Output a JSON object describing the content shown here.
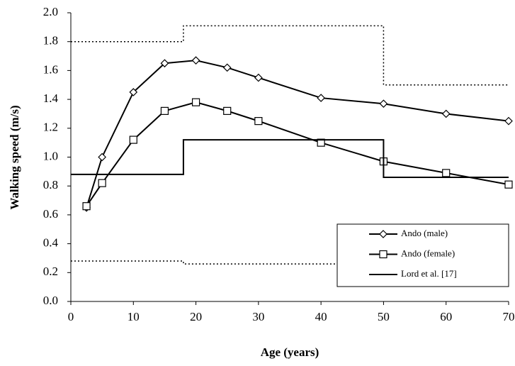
{
  "chart_data": {
    "type": "line",
    "xlabel": "Age (years)",
    "ylabel": "Walking speed (m/s)",
    "xlim": [
      0,
      70
    ],
    "xticks": [
      0,
      10,
      20,
      30,
      40,
      50,
      60,
      70
    ],
    "ylim": [
      0,
      2
    ],
    "yticks": [
      {
        "value": 0,
        "label": "0.0"
      },
      {
        "value": 0.2,
        "label": "0.2"
      },
      {
        "value": 0.4,
        "label": "0.4"
      },
      {
        "value": 0.6,
        "label": "0.6"
      },
      {
        "value": 0.8,
        "label": "0.8"
      },
      {
        "value": 1,
        "label": "1.0"
      },
      {
        "value": 1.2,
        "label": "1.2"
      },
      {
        "value": 1.4,
        "label": "1.4"
      },
      {
        "value": 1.6,
        "label": "1.6"
      },
      {
        "value": 1.8,
        "label": "1.8"
      },
      {
        "value": 2,
        "label": "2.0"
      }
    ],
    "legend": "lower right",
    "series": [
      {
        "name": "Ando (male)",
        "color": "#000000",
        "marker": "diamond",
        "dash": "solid",
        "x": [
          2.5,
          5,
          10,
          15,
          20,
          25,
          30,
          40,
          50,
          60,
          70
        ],
        "values": [
          0.65,
          1.0,
          1.45,
          1.65,
          1.67,
          1.62,
          1.55,
          1.41,
          1.37,
          1.3,
          1.25
        ]
      },
      {
        "name": "Ando (female)",
        "color": "#000000",
        "marker": "square",
        "dash": "solid",
        "x": [
          2.5,
          5,
          10,
          15,
          20,
          25,
          30,
          40,
          50,
          60,
          70
        ],
        "values": [
          0.66,
          0.82,
          1.12,
          1.32,
          1.38,
          1.32,
          1.25,
          1.1,
          0.97,
          0.89,
          0.81
        ]
      },
      {
        "name": "Lord et al. [17]",
        "color": "#000000",
        "marker": "none",
        "dash": "solid",
        "x": [
          0,
          18,
          18,
          50,
          50,
          70
        ],
        "values": [
          0.88,
          0.88,
          1.12,
          1.12,
          0.86,
          0.86
        ]
      },
      {
        "color": "#000000",
        "marker": "none",
        "dash": "dotted",
        "x": [
          0,
          18,
          18,
          50,
          50,
          70
        ],
        "values": [
          1.8,
          1.8,
          1.91,
          1.91,
          1.5,
          1.5
        ]
      },
      {
        "color": "#000000",
        "marker": "none",
        "dash": "dotted",
        "x": [
          0,
          18,
          18,
          50,
          50,
          70
        ],
        "values": [
          0.28,
          0.28,
          0.26,
          0.26,
          0.26,
          0.26
        ]
      }
    ]
  }
}
